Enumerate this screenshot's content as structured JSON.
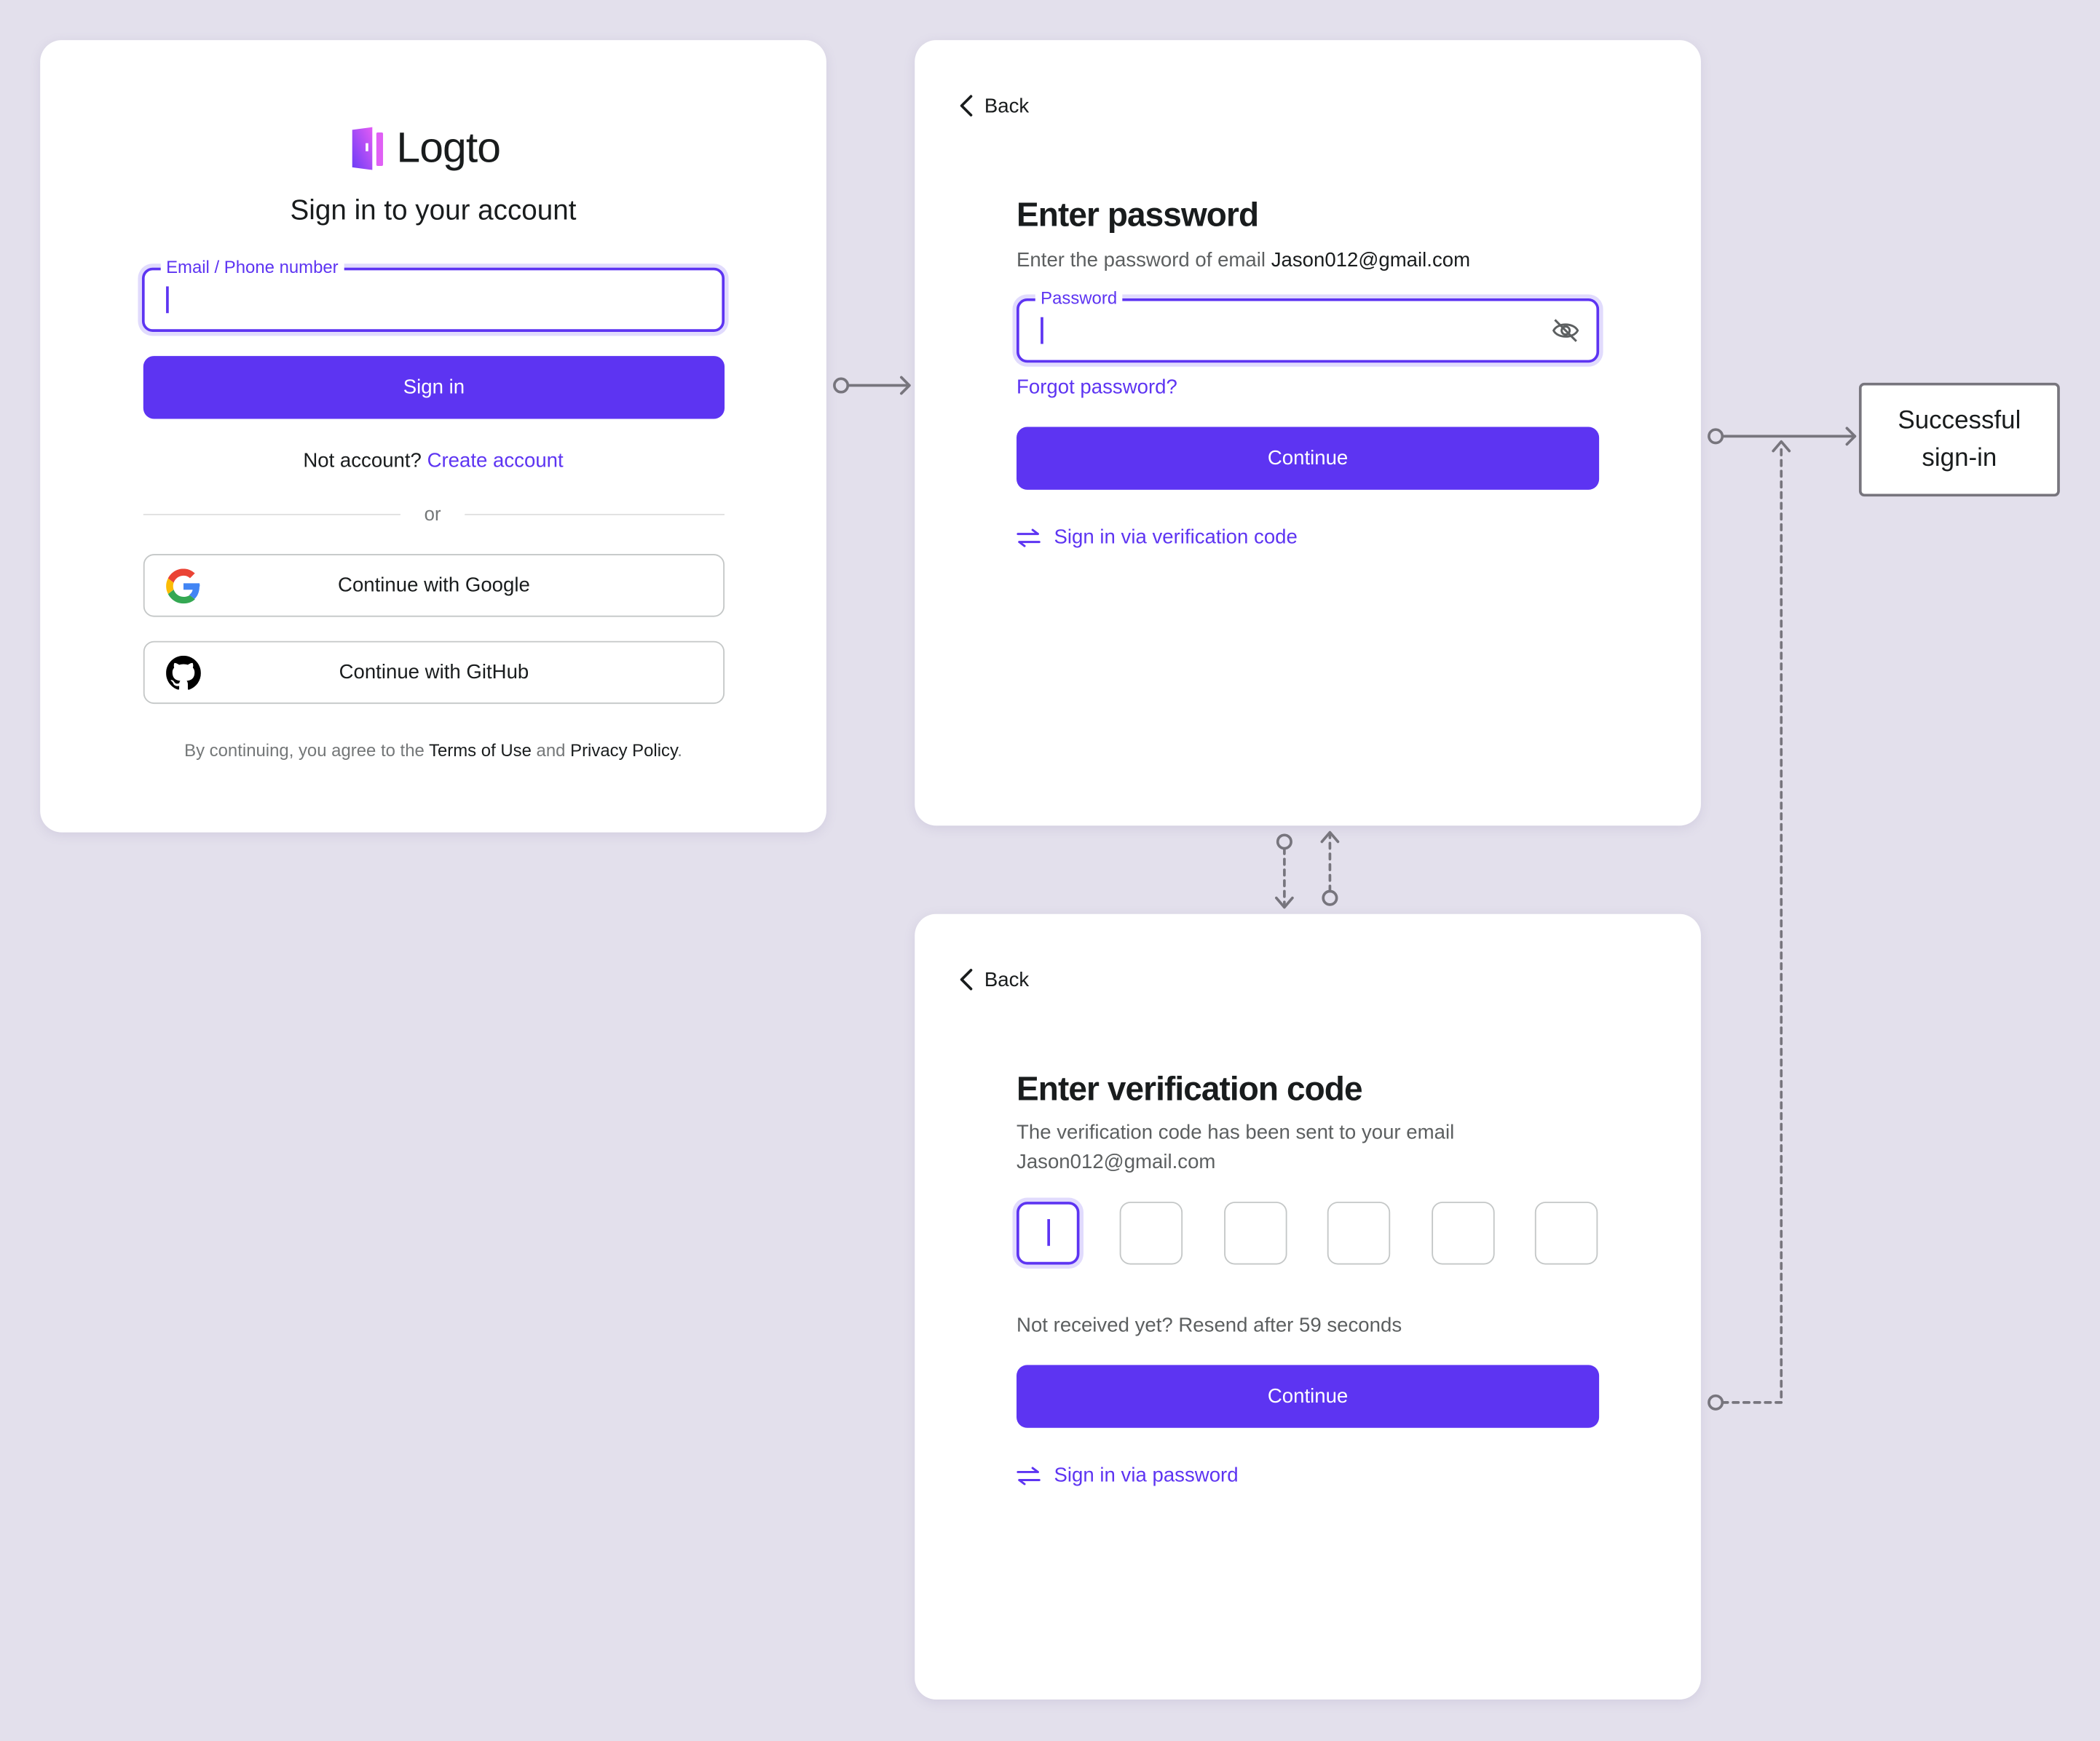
{
  "colors": {
    "brand": "#5d34f2",
    "background": "#e3e0ec",
    "connector": "#77757d"
  },
  "signin": {
    "logo_text": "Logto",
    "title": "Sign in to your account",
    "identifier_label": "Email / Phone number",
    "identifier_value": "",
    "signin_button": "Sign in",
    "no_account": "Not account?",
    "create_account": "Create account",
    "divider": "or",
    "google_button": "Continue with Google",
    "github_button": "Continue with GitHub",
    "terms_prefix": "By continuing, you agree to the",
    "terms_link": "Terms of Use",
    "terms_and": "and",
    "privacy_link": "Privacy Policy",
    "terms_suffix": "."
  },
  "password": {
    "back": "Back",
    "title": "Enter password",
    "subtitle": "Enter the password of email",
    "email": "Jason012@gmail.com",
    "field_label": "Password",
    "field_value": "",
    "forgot": "Forgot password?",
    "continue": "Continue",
    "switch": "Sign in via verification code"
  },
  "verification": {
    "back": "Back",
    "title": "Enter verification code",
    "subtitle_line1": "The verification code has been sent to your email",
    "subtitle_line2": "Jason012@gmail.com",
    "code_digits": [
      "",
      "",
      "",
      "",
      "",
      ""
    ],
    "resend": "Not received yet? Resend after 59 seconds",
    "continue": "Continue",
    "switch": "Sign in via password"
  },
  "success": {
    "line1": "Successful",
    "line2": "sign-in"
  }
}
